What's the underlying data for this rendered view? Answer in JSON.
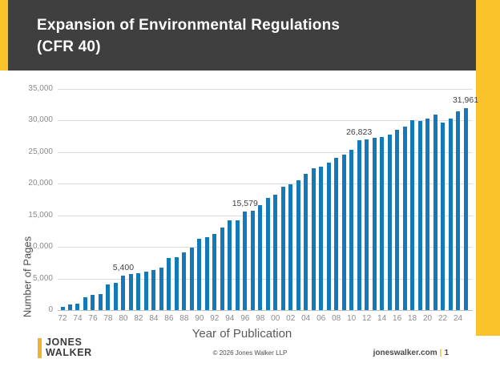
{
  "header": {
    "title_line1": "Expansion of Environmental Regulations",
    "title_line2": "(CFR 40)"
  },
  "chart_data": {
    "type": "bar",
    "title": "Expansion of Environmental Regulations (CFR 40)",
    "xlabel": "Year of Publication",
    "ylabel": "Number of Pages",
    "ylim": [
      0,
      35000
    ],
    "ytick_interval": 5000,
    "ytick_labels": [
      "0",
      "5,000",
      "10,000",
      "15,000",
      "20,000",
      "25,000",
      "30,000",
      "35,000"
    ],
    "grid": "horizontal",
    "legend": "none",
    "bar_color": "#1479B8",
    "years": [
      1972,
      1973,
      1974,
      1975,
      1976,
      1977,
      1978,
      1979,
      1980,
      1981,
      1982,
      1983,
      1984,
      1985,
      1986,
      1987,
      1988,
      1989,
      1990,
      1991,
      1992,
      1993,
      1994,
      1995,
      1996,
      1997,
      1998,
      1999,
      2000,
      2001,
      2002,
      2003,
      2004,
      2005,
      2006,
      2007,
      2008,
      2009,
      2010,
      2011,
      2012,
      2013,
      2014,
      2015,
      2016,
      2017,
      2018,
      2019,
      2020,
      2021,
      2022,
      2023,
      2024,
      2025
    ],
    "x_tick_labels_every_2_years": [
      "72",
      "74",
      "76",
      "78",
      "80",
      "82",
      "84",
      "86",
      "88",
      "90",
      "92",
      "94",
      "96",
      "98",
      "00",
      "02",
      "04",
      "06",
      "08",
      "10",
      "12",
      "14",
      "16",
      "18",
      "20",
      "22",
      "24"
    ],
    "values": [
      500,
      900,
      1050,
      2000,
      2450,
      2550,
      4100,
      4350,
      5400,
      5700,
      5850,
      6050,
      6300,
      6700,
      8250,
      8350,
      9100,
      9900,
      11300,
      11600,
      12050,
      13050,
      14150,
      14250,
      15579,
      15700,
      16550,
      17700,
      18250,
      19500,
      19850,
      20550,
      21600,
      22450,
      22750,
      23300,
      24100,
      24600,
      25300,
      26823,
      27000,
      27300,
      27400,
      27800,
      28500,
      29000,
      30100,
      29900,
      30300,
      31000,
      29700,
      30300,
      31500,
      31961
    ],
    "data_labels": [
      {
        "year": 1980,
        "text": "5,400"
      },
      {
        "year": 1996,
        "text": "15,579"
      },
      {
        "year": 2011,
        "text": "26,823"
      },
      {
        "year": 2025,
        "text": "31,961"
      }
    ]
  },
  "footer": {
    "logo_line1": "JONES",
    "logo_line2": "WALKER",
    "copyright": "© 2026 Jones Walker LLP",
    "website": "joneswalker.com",
    "separator": "|",
    "page_number": "1"
  },
  "colors": {
    "accent_yellow": "#FBC32B",
    "header_background": "#3F3F3F",
    "header_text": "#FFFFFF",
    "bar_blue": "#1479B8",
    "gridline": "#DCDCDC",
    "tick_text": "#8A8A8A"
  }
}
